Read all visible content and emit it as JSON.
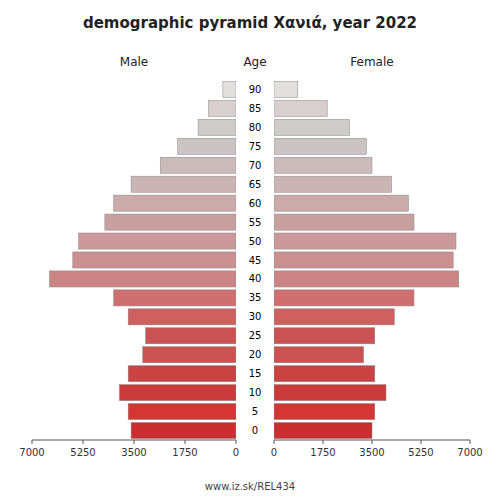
{
  "chart_data": {
    "type": "bar",
    "orientation": "horizontal",
    "title": "demographic pyramid Χανιά, year 2022",
    "ylabel": "Age",
    "categories": [
      "0",
      "5",
      "10",
      "15",
      "20",
      "25",
      "30",
      "35",
      "40",
      "45",
      "50",
      "55",
      "60",
      "65",
      "70",
      "75",
      "80",
      "85",
      "90"
    ],
    "colors": [
      "#cb2e2e",
      "#d43535",
      "#cb3a3a",
      "#cb4242",
      "#cb5252",
      "#cb5252",
      "#cf6060",
      "#cf7070",
      "#cb8585",
      "#cb9090",
      "#cb9999",
      "#c8a0a0",
      "#cbaaaa",
      "#cbb4b4",
      "#cbbaba",
      "#cbc4c4",
      "#cfcbcb",
      "#d8d0d0",
      "#e4dfdf"
    ],
    "grid": false,
    "series": [
      {
        "name": "Male",
        "values": [
          3600,
          3700,
          4000,
          3700,
          3200,
          3100,
          3700,
          4200,
          6400,
          5600,
          5400,
          4500,
          4200,
          3600,
          2600,
          2000,
          1300,
          950,
          450
        ],
        "xlim": [
          7000,
          0
        ],
        "xticks": [
          7000,
          5250,
          3500,
          1750,
          0
        ]
      },
      {
        "name": "Female",
        "values": [
          3500,
          3600,
          4000,
          3600,
          3200,
          3600,
          4300,
          5000,
          6600,
          6400,
          6500,
          5000,
          4800,
          4200,
          3500,
          3300,
          2700,
          1900,
          850
        ],
        "xlim": [
          0,
          7000
        ],
        "xticks": [
          0,
          1750,
          3500,
          5250,
          7000
        ]
      }
    ],
    "annotations": [
      "www.iz.sk/REL434"
    ]
  }
}
